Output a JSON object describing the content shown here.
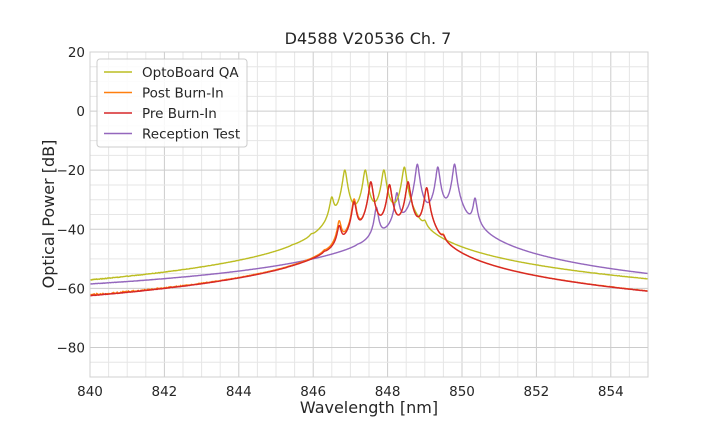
{
  "chart_data": {
    "type": "line",
    "title": "D4588 V20536 Ch. 7",
    "xlabel": "Wavelength [nm]",
    "ylabel": "Optical Power [dB]",
    "xlim": [
      840,
      855
    ],
    "ylim": [
      -90,
      20
    ],
    "x_ticks": [
      840,
      842,
      844,
      846,
      848,
      850,
      852,
      854
    ],
    "x_tick_labels": [
      "840",
      "842",
      "844",
      "846",
      "848",
      "850",
      "852",
      "854"
    ],
    "y_ticks": [
      20,
      0,
      -20,
      -40,
      -60,
      -80
    ],
    "y_tick_labels": [
      "20",
      "0",
      "−20",
      "−40",
      "−60",
      "−80"
    ],
    "grid": true,
    "minor_grid": true,
    "legend_position": "top-left",
    "series": [
      {
        "name": "OptoBoard QA",
        "color": "#bcbd22",
        "noise_floor": {
          "x_range": [
            840,
            845.2
          ],
          "level": -72,
          "spread": 6
        },
        "noise_floor_right": {
          "x_range": [
            849.6,
            855
          ],
          "level": -76,
          "spread": 10
        },
        "peaks": [
          {
            "x": 845.45,
            "y": -60
          },
          {
            "x": 845.95,
            "y": -51
          },
          {
            "x": 846.5,
            "y": -30
          },
          {
            "x": 846.85,
            "y": -20
          },
          {
            "x": 847.4,
            "y": -20
          },
          {
            "x": 847.9,
            "y": -20
          },
          {
            "x": 848.45,
            "y": -19
          },
          {
            "x": 849.0,
            "y": -42
          }
        ]
      },
      {
        "name": "Post Burn-In",
        "color": "#ff7f0e",
        "noise_floor": {
          "x_range": [
            840,
            845.3
          ],
          "level": -77,
          "spread": 12
        },
        "noise_floor_right": {
          "x_range": [
            849.8,
            855
          ],
          "level": -80,
          "spread": 12
        },
        "peaks": [
          {
            "x": 846.3,
            "y": -57
          },
          {
            "x": 846.7,
            "y": -38
          },
          {
            "x": 847.1,
            "y": -30
          },
          {
            "x": 847.55,
            "y": -24
          },
          {
            "x": 848.05,
            "y": -25
          },
          {
            "x": 848.55,
            "y": -24
          },
          {
            "x": 849.05,
            "y": -26
          },
          {
            "x": 849.5,
            "y": -47
          }
        ]
      },
      {
        "name": "Pre Burn-In",
        "color": "#d62728",
        "noise_floor": {
          "x_range": [
            840,
            845.3
          ],
          "level": -80,
          "spread": 12
        },
        "noise_floor_right": {
          "x_range": [
            849.8,
            855
          ],
          "level": -82,
          "spread": 12
        },
        "peaks": [
          {
            "x": 846.3,
            "y": -58
          },
          {
            "x": 846.7,
            "y": -40
          },
          {
            "x": 847.1,
            "y": -31
          },
          {
            "x": 847.55,
            "y": -24
          },
          {
            "x": 848.05,
            "y": -25
          },
          {
            "x": 848.55,
            "y": -24
          },
          {
            "x": 849.05,
            "y": -26
          },
          {
            "x": 849.5,
            "y": -48
          }
        ]
      },
      {
        "name": "Reception Test",
        "color": "#9467bd",
        "baseline": [
          [
            840,
            -65.5
          ],
          [
            845,
            -65
          ],
          [
            846.5,
            -64
          ],
          [
            850.3,
            -64
          ],
          [
            850.6,
            -66
          ],
          [
            852,
            -66
          ],
          [
            855,
            -67.5
          ]
        ],
        "peaks": [
          {
            "x": 847.2,
            "y": -59
          },
          {
            "x": 847.7,
            "y": -33
          },
          {
            "x": 848.25,
            "y": -28
          },
          {
            "x": 848.8,
            "y": -18
          },
          {
            "x": 849.35,
            "y": -19
          },
          {
            "x": 849.8,
            "y": -18
          },
          {
            "x": 850.35,
            "y": -30
          }
        ]
      }
    ]
  }
}
